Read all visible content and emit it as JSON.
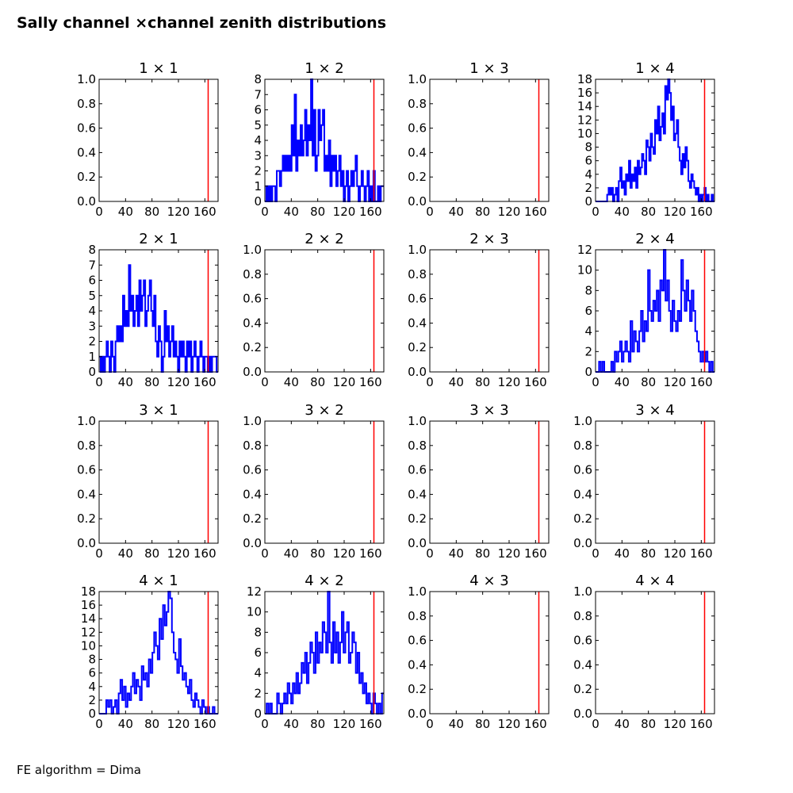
{
  "figure": {
    "title": "Sally channel ×channel zenith distributions",
    "footer": "FE algorithm = Dima"
  },
  "chart_data": [
    {
      "type": "histogram",
      "title": "1 × 1",
      "xlim": [
        0,
        180
      ],
      "ylim": [
        0,
        1.0
      ],
      "xticks": [
        0,
        40,
        80,
        120,
        160
      ],
      "xtick_labels": [
        "0",
        "40",
        "80",
        "120",
        "160"
      ],
      "yticks": [
        0,
        0.2,
        0.4,
        0.6,
        0.8,
        1.0
      ],
      "ytick_labels": [
        "0.0",
        "0.2",
        "0.4",
        "0.6",
        "0.8",
        "1.0"
      ],
      "series_color": "#0000ff",
      "reference_line": {
        "x": 165,
        "color": "#ff0000"
      },
      "counts": []
    },
    {
      "type": "histogram",
      "title": "1 × 2",
      "xlim": [
        0,
        180
      ],
      "ylim": [
        0,
        8
      ],
      "xticks": [
        0,
        40,
        80,
        120,
        160
      ],
      "xtick_labels": [
        "0",
        "40",
        "80",
        "120",
        "160"
      ],
      "yticks": [
        0,
        1,
        2,
        3,
        4,
        5,
        6,
        7,
        8
      ],
      "ytick_labels": [
        "0",
        "1",
        "2",
        "3",
        "4",
        "5",
        "6",
        "7",
        "8"
      ],
      "series_color": "#0000ff",
      "reference_line": {
        "x": 165,
        "color": "#ff0000"
      },
      "counts": [
        0,
        1,
        0,
        1,
        0,
        1,
        1,
        0,
        2,
        2,
        1,
        2,
        3,
        2,
        3,
        2,
        3,
        2,
        5,
        3,
        7,
        2,
        4,
        3,
        5,
        3,
        4,
        6,
        3,
        5,
        4,
        8,
        3,
        6,
        2,
        3,
        6,
        4,
        5,
        6,
        2,
        3,
        2,
        4,
        1,
        3,
        2,
        3,
        1,
        2,
        3,
        1,
        2,
        0,
        1,
        2,
        0,
        1,
        2,
        1,
        2,
        3,
        1,
        0,
        1,
        2,
        1,
        0,
        1,
        2,
        0,
        1,
        0,
        2,
        0,
        0,
        1,
        0,
        1,
        1
      ]
    },
    {
      "type": "histogram",
      "title": "1 × 3",
      "xlim": [
        0,
        180
      ],
      "ylim": [
        0,
        1.0
      ],
      "xticks": [
        0,
        40,
        80,
        120,
        160
      ],
      "xtick_labels": [
        "0",
        "40",
        "80",
        "120",
        "160"
      ],
      "yticks": [
        0,
        0.2,
        0.4,
        0.6,
        0.8,
        1.0
      ],
      "ytick_labels": [
        "0.0",
        "0.2",
        "0.4",
        "0.6",
        "0.8",
        "1.0"
      ],
      "series_color": "#0000ff",
      "reference_line": {
        "x": 165,
        "color": "#ff0000"
      },
      "counts": []
    },
    {
      "type": "histogram",
      "title": "1 × 4",
      "xlim": [
        0,
        180
      ],
      "ylim": [
        0,
        18
      ],
      "xticks": [
        0,
        40,
        80,
        120,
        160
      ],
      "xtick_labels": [
        "0",
        "40",
        "80",
        "120",
        "160"
      ],
      "yticks": [
        0,
        2,
        4,
        6,
        8,
        10,
        12,
        14,
        16,
        18
      ],
      "ytick_labels": [
        "0",
        "2",
        "4",
        "6",
        "8",
        "10",
        "12",
        "14",
        "16",
        "18"
      ],
      "series_color": "#0000ff",
      "reference_line": {
        "x": 165,
        "color": "#ff0000"
      },
      "counts": [
        0,
        0,
        0,
        0,
        0,
        0,
        0,
        0,
        1,
        2,
        1,
        2,
        0,
        1,
        2,
        0,
        3,
        5,
        2,
        3,
        1,
        4,
        3,
        6,
        2,
        4,
        3,
        5,
        2,
        6,
        4,
        5,
        7,
        6,
        4,
        9,
        8,
        6,
        10,
        8,
        7,
        12,
        10,
        14,
        9,
        11,
        13,
        10,
        17,
        15,
        18,
        16,
        12,
        14,
        9,
        10,
        12,
        8,
        6,
        4,
        7,
        5,
        8,
        6,
        3,
        2,
        4,
        3,
        2,
        1,
        2,
        0,
        1,
        0,
        1,
        2,
        0,
        1,
        0,
        0,
        1,
        0
      ]
    },
    {
      "type": "histogram",
      "title": "2 × 1",
      "xlim": [
        0,
        180
      ],
      "ylim": [
        0,
        8
      ],
      "xticks": [
        0,
        40,
        80,
        120,
        160
      ],
      "xtick_labels": [
        "0",
        "40",
        "80",
        "120",
        "160"
      ],
      "yticks": [
        0,
        1,
        2,
        3,
        4,
        5,
        6,
        7,
        8
      ],
      "ytick_labels": [
        "0",
        "1",
        "2",
        "3",
        "4",
        "5",
        "6",
        "7",
        "8"
      ],
      "series_color": "#0000ff",
      "reference_line": {
        "x": 165,
        "color": "#ff0000"
      },
      "counts": [
        1,
        0,
        1,
        0,
        1,
        2,
        1,
        0,
        2,
        1,
        0,
        2,
        3,
        2,
        3,
        2,
        5,
        3,
        4,
        3,
        7,
        4,
        5,
        3,
        4,
        5,
        3,
        6,
        4,
        5,
        6,
        3,
        4,
        5,
        6,
        4,
        3,
        5,
        2,
        1,
        3,
        2,
        0,
        1,
        4,
        2,
        3,
        1,
        2,
        3,
        1,
        2,
        1,
        0,
        2,
        1,
        2,
        1,
        0,
        2,
        1,
        2,
        0,
        1,
        2,
        1,
        0,
        1,
        2,
        1,
        0,
        1,
        1,
        0,
        1,
        0,
        1,
        1,
        1,
        0
      ]
    },
    {
      "type": "histogram",
      "title": "2 × 2",
      "xlim": [
        0,
        180
      ],
      "ylim": [
        0,
        1.0
      ],
      "xticks": [
        0,
        40,
        80,
        120,
        160
      ],
      "xtick_labels": [
        "0",
        "40",
        "80",
        "120",
        "160"
      ],
      "yticks": [
        0,
        0.2,
        0.4,
        0.6,
        0.8,
        1.0
      ],
      "ytick_labels": [
        "0.0",
        "0.2",
        "0.4",
        "0.6",
        "0.8",
        "1.0"
      ],
      "series_color": "#0000ff",
      "reference_line": {
        "x": 165,
        "color": "#ff0000"
      },
      "counts": []
    },
    {
      "type": "histogram",
      "title": "2 × 3",
      "xlim": [
        0,
        180
      ],
      "ylim": [
        0,
        1.0
      ],
      "xticks": [
        0,
        40,
        80,
        120,
        160
      ],
      "xtick_labels": [
        "0",
        "40",
        "80",
        "120",
        "160"
      ],
      "yticks": [
        0,
        0.2,
        0.4,
        0.6,
        0.8,
        1.0
      ],
      "ytick_labels": [
        "0.0",
        "0.2",
        "0.4",
        "0.6",
        "0.8",
        "1.0"
      ],
      "series_color": "#0000ff",
      "reference_line": {
        "x": 165,
        "color": "#ff0000"
      },
      "counts": []
    },
    {
      "type": "histogram",
      "title": "2 × 4",
      "xlim": [
        0,
        180
      ],
      "ylim": [
        0,
        12
      ],
      "xticks": [
        0,
        40,
        80,
        120,
        160
      ],
      "xtick_labels": [
        "0",
        "40",
        "80",
        "120",
        "160"
      ],
      "yticks": [
        0,
        2,
        4,
        6,
        8,
        10,
        12
      ],
      "ytick_labels": [
        "0",
        "2",
        "4",
        "6",
        "8",
        "10",
        "12"
      ],
      "series_color": "#0000ff",
      "reference_line": {
        "x": 165,
        "color": "#ff0000"
      },
      "counts": [
        0,
        0,
        1,
        0,
        1,
        0,
        0,
        0,
        0,
        1,
        0,
        2,
        1,
        2,
        3,
        1,
        2,
        3,
        2,
        1,
        5,
        2,
        4,
        3,
        2,
        4,
        6,
        3,
        5,
        4,
        10,
        6,
        5,
        7,
        6,
        8,
        5,
        9,
        8,
        12,
        7,
        9,
        6,
        4,
        7,
        5,
        4,
        6,
        5,
        11,
        8,
        6,
        9,
        7,
        5,
        8,
        6,
        4,
        3,
        2,
        1,
        2,
        1,
        2,
        1,
        0,
        1,
        0
      ]
    },
    {
      "type": "histogram",
      "title": "3 × 1",
      "xlim": [
        0,
        180
      ],
      "ylim": [
        0,
        1.0
      ],
      "xticks": [
        0,
        40,
        80,
        120,
        160
      ],
      "xtick_labels": [
        "0",
        "40",
        "80",
        "120",
        "160"
      ],
      "yticks": [
        0,
        0.2,
        0.4,
        0.6,
        0.8,
        1.0
      ],
      "ytick_labels": [
        "0.0",
        "0.2",
        "0.4",
        "0.6",
        "0.8",
        "1.0"
      ],
      "series_color": "#0000ff",
      "reference_line": {
        "x": 165,
        "color": "#ff0000"
      },
      "counts": []
    },
    {
      "type": "histogram",
      "title": "3 × 2",
      "xlim": [
        0,
        180
      ],
      "ylim": [
        0,
        1.0
      ],
      "xticks": [
        0,
        40,
        80,
        120,
        160
      ],
      "xtick_labels": [
        "0",
        "40",
        "80",
        "120",
        "160"
      ],
      "yticks": [
        0,
        0.2,
        0.4,
        0.6,
        0.8,
        1.0
      ],
      "ytick_labels": [
        "0.0",
        "0.2",
        "0.4",
        "0.6",
        "0.8",
        "1.0"
      ],
      "series_color": "#0000ff",
      "reference_line": {
        "x": 165,
        "color": "#ff0000"
      },
      "counts": []
    },
    {
      "type": "histogram",
      "title": "3 × 3",
      "xlim": [
        0,
        180
      ],
      "ylim": [
        0,
        1.0
      ],
      "xticks": [
        0,
        40,
        80,
        120,
        160
      ],
      "xtick_labels": [
        "0",
        "40",
        "80",
        "120",
        "160"
      ],
      "yticks": [
        0,
        0.2,
        0.4,
        0.6,
        0.8,
        1.0
      ],
      "ytick_labels": [
        "0.0",
        "0.2",
        "0.4",
        "0.6",
        "0.8",
        "1.0"
      ],
      "series_color": "#0000ff",
      "reference_line": {
        "x": 165,
        "color": "#ff0000"
      },
      "counts": []
    },
    {
      "type": "histogram",
      "title": "3 × 4",
      "xlim": [
        0,
        180
      ],
      "ylim": [
        0,
        1.0
      ],
      "xticks": [
        0,
        40,
        80,
        120,
        160
      ],
      "xtick_labels": [
        "0",
        "40",
        "80",
        "120",
        "160"
      ],
      "yticks": [
        0,
        0.2,
        0.4,
        0.6,
        0.8,
        1.0
      ],
      "ytick_labels": [
        "0.0",
        "0.2",
        "0.4",
        "0.6",
        "0.8",
        "1.0"
      ],
      "series_color": "#0000ff",
      "reference_line": {
        "x": 165,
        "color": "#ff0000"
      },
      "counts": []
    },
    {
      "type": "histogram",
      "title": "4 × 1",
      "xlim": [
        0,
        180
      ],
      "ylim": [
        0,
        18
      ],
      "xticks": [
        0,
        40,
        80,
        120,
        160
      ],
      "xtick_labels": [
        "0",
        "40",
        "80",
        "120",
        "160"
      ],
      "yticks": [
        0,
        2,
        4,
        6,
        8,
        10,
        12,
        14,
        16,
        18
      ],
      "ytick_labels": [
        "0",
        "2",
        "4",
        "6",
        "8",
        "10",
        "12",
        "14",
        "16",
        "18"
      ],
      "series_color": "#0000ff",
      "reference_line": {
        "x": 165,
        "color": "#ff0000"
      },
      "counts": [
        0,
        0,
        0,
        0,
        2,
        1,
        2,
        0,
        1,
        2,
        0,
        3,
        5,
        2,
        4,
        1,
        3,
        2,
        4,
        6,
        3,
        5,
        4,
        2,
        7,
        5,
        6,
        4,
        8,
        6,
        9,
        12,
        10,
        8,
        14,
        11,
        16,
        13,
        15,
        18,
        17,
        12,
        9,
        8,
        6,
        11,
        7,
        5,
        6,
        4,
        3,
        5,
        2,
        1,
        3,
        2,
        1,
        0,
        2,
        1,
        0,
        1,
        0,
        0,
        1,
        0,
        0
      ]
    },
    {
      "type": "histogram",
      "title": "4 × 2",
      "xlim": [
        0,
        180
      ],
      "ylim": [
        0,
        12
      ],
      "xticks": [
        0,
        40,
        80,
        120,
        160
      ],
      "xtick_labels": [
        "0",
        "40",
        "80",
        "120",
        "160"
      ],
      "yticks": [
        0,
        2,
        4,
        6,
        8,
        10,
        12
      ],
      "ytick_labels": [
        "0",
        "2",
        "4",
        "6",
        "8",
        "10",
        "12"
      ],
      "series_color": "#0000ff",
      "reference_line": {
        "x": 165,
        "color": "#ff0000"
      },
      "counts": [
        0,
        1,
        0,
        1,
        0,
        0,
        0,
        2,
        1,
        0,
        1,
        2,
        1,
        3,
        2,
        1,
        3,
        2,
        4,
        2,
        3,
        5,
        4,
        6,
        3,
        5,
        7,
        6,
        4,
        8,
        5,
        7,
        6,
        9,
        8,
        6,
        12,
        7,
        5,
        9,
        6,
        8,
        5,
        7,
        10,
        6,
        8,
        9,
        5,
        6,
        8,
        7,
        4,
        6,
        3,
        4,
        2,
        3,
        1,
        2,
        1,
        0,
        2,
        1,
        0,
        1,
        0,
        2
      ]
    },
    {
      "type": "histogram",
      "title": "4 × 3",
      "xlim": [
        0,
        180
      ],
      "ylim": [
        0,
        1.0
      ],
      "xticks": [
        0,
        40,
        80,
        120,
        160
      ],
      "xtick_labels": [
        "0",
        "40",
        "80",
        "120",
        "160"
      ],
      "yticks": [
        0,
        0.2,
        0.4,
        0.6,
        0.8,
        1.0
      ],
      "ytick_labels": [
        "0.0",
        "0.2",
        "0.4",
        "0.6",
        "0.8",
        "1.0"
      ],
      "series_color": "#0000ff",
      "reference_line": {
        "x": 165,
        "color": "#ff0000"
      },
      "counts": []
    },
    {
      "type": "histogram",
      "title": "4 × 4",
      "xlim": [
        0,
        180
      ],
      "ylim": [
        0,
        1.0
      ],
      "xticks": [
        0,
        40,
        80,
        120,
        160
      ],
      "xtick_labels": [
        "0",
        "40",
        "80",
        "120",
        "160"
      ],
      "yticks": [
        0,
        0.2,
        0.4,
        0.6,
        0.8,
        1.0
      ],
      "ytick_labels": [
        "0.0",
        "0.2",
        "0.4",
        "0.6",
        "0.8",
        "1.0"
      ],
      "series_color": "#0000ff",
      "reference_line": {
        "x": 165,
        "color": "#ff0000"
      },
      "counts": []
    }
  ]
}
